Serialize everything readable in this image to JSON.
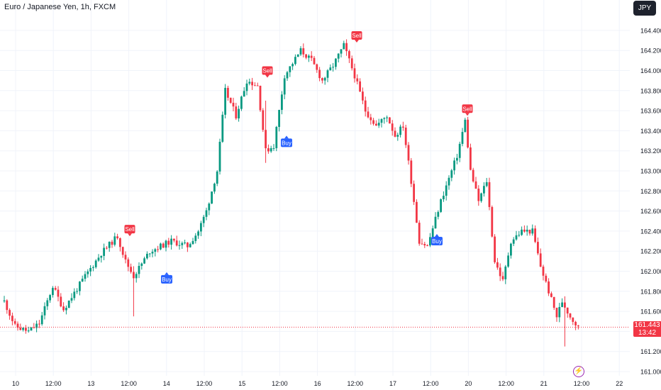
{
  "header": {
    "title": "Euro / Japanese Yen, 1h, FXCM"
  },
  "currency_button": {
    "label": "JPY"
  },
  "last_price": {
    "price": "161.443",
    "countdown": "13:42"
  },
  "colors": {
    "up": "#089981",
    "down": "#f23645",
    "buy_badge": "#2962ff",
    "sell_badge": "#f23645",
    "grid": "#f0f3fa",
    "text": "#131722",
    "last_price_line": "#f23645"
  },
  "chart_data": {
    "type": "candlestick",
    "title": "Euro / Japanese Yen, 1h, FXCM",
    "xlabel": "",
    "ylabel": "",
    "ylim": [
      161.0,
      164.5
    ],
    "grid": true,
    "y_ticks": [
      161.0,
      161.2,
      161.4,
      161.6,
      161.8,
      162.0,
      162.2,
      162.4,
      162.6,
      162.8,
      163.0,
      163.2,
      163.4,
      163.6,
      163.8,
      164.0,
      164.2,
      164.4
    ],
    "x_ticks": [
      "10",
      "12:00",
      "13",
      "12:00",
      "14",
      "12:00",
      "15",
      "12:00",
      "16",
      "12:00",
      "17",
      "12:00",
      "20",
      "12:00",
      "21",
      "12:00",
      "22"
    ],
    "waypoints": [
      [
        0,
        161.7
      ],
      [
        4,
        161.45
      ],
      [
        9,
        161.4
      ],
      [
        13,
        161.48
      ],
      [
        18,
        161.85
      ],
      [
        22,
        161.62
      ],
      [
        30,
        161.95
      ],
      [
        36,
        162.18
      ],
      [
        42,
        162.35
      ],
      [
        45,
        162.1
      ],
      [
        48,
        161.95
      ],
      [
        54,
        162.2
      ],
      [
        62,
        162.3
      ],
      [
        68,
        162.25
      ],
      [
        72,
        162.4
      ],
      [
        75,
        162.6
      ],
      [
        79,
        163.0
      ],
      [
        82,
        163.8
      ],
      [
        86,
        163.55
      ],
      [
        90,
        163.9
      ],
      [
        94,
        163.85
      ],
      [
        97,
        163.2
      ],
      [
        100,
        163.25
      ],
      [
        104,
        163.95
      ],
      [
        110,
        164.2
      ],
      [
        114,
        164.1
      ],
      [
        118,
        163.9
      ],
      [
        122,
        164.05
      ],
      [
        126,
        164.25
      ],
      [
        130,
        163.95
      ],
      [
        134,
        163.6
      ],
      [
        138,
        163.45
      ],
      [
        142,
        163.55
      ],
      [
        145,
        163.35
      ],
      [
        148,
        163.45
      ],
      [
        151,
        162.9
      ],
      [
        154,
        162.3
      ],
      [
        157,
        162.25
      ],
      [
        162,
        162.7
      ],
      [
        168,
        163.15
      ],
      [
        171,
        163.5
      ],
      [
        173,
        163.0
      ],
      [
        176,
        162.7
      ],
      [
        179,
        162.9
      ],
      [
        182,
        162.1
      ],
      [
        185,
        161.9
      ],
      [
        188,
        162.3
      ],
      [
        192,
        162.4
      ],
      [
        196,
        162.4
      ],
      [
        199,
        162.05
      ],
      [
        202,
        161.8
      ],
      [
        205,
        161.55
      ],
      [
        207,
        161.7
      ],
      [
        210,
        161.55
      ],
      [
        213,
        161.44
      ]
    ],
    "wick_spikes": [
      [
        48,
        161.55,
        162.05
      ],
      [
        97,
        163.08,
        163.7
      ],
      [
        208,
        161.25,
        161.75
      ]
    ],
    "signals": [
      {
        "label": "Sell",
        "price": 162.42
      },
      {
        "label": "Buy",
        "price": 161.92
      },
      {
        "label": "Sell",
        "price": 164.0
      },
      {
        "label": "Buy",
        "price": 163.28
      },
      {
        "label": "Sell",
        "price": 164.35
      },
      {
        "label": "Buy",
        "price": 162.3
      },
      {
        "label": "Sell",
        "price": 163.62
      }
    ]
  }
}
